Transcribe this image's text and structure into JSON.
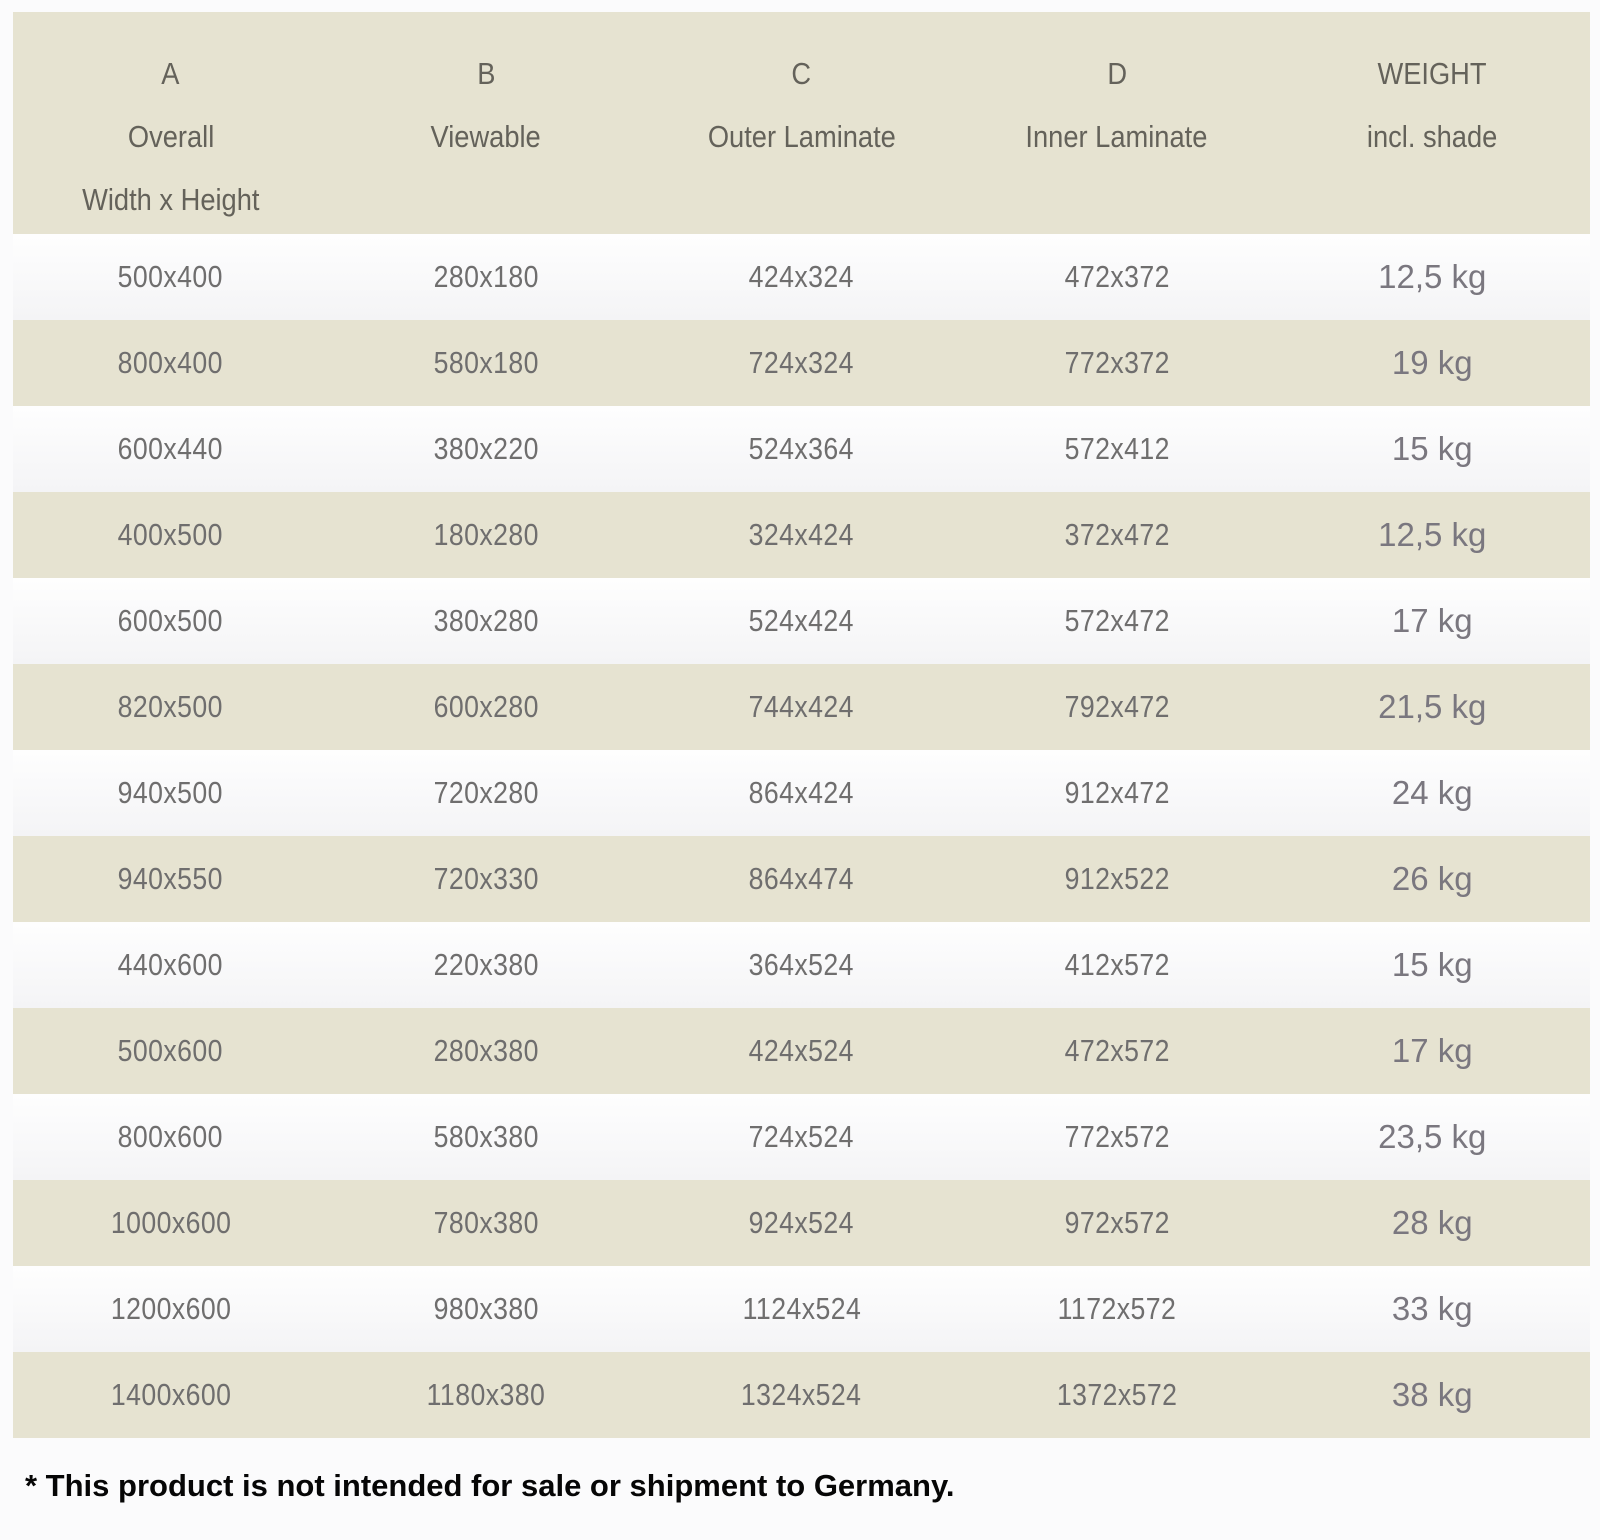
{
  "table": {
    "columns": [
      {
        "letter": "A",
        "name": "Overall",
        "sub": "Width x Height"
      },
      {
        "letter": "B",
        "name": "Viewable",
        "sub": ""
      },
      {
        "letter": "C",
        "name": "Outer Laminate",
        "sub": ""
      },
      {
        "letter": "D",
        "name": "Inner Laminate",
        "sub": ""
      },
      {
        "letter": "WEIGHT",
        "name": "incl. shade",
        "sub": ""
      }
    ],
    "rows": [
      {
        "overall": "500x400",
        "viewable": "280x180",
        "outer": "424x324",
        "inner": "472x372",
        "weight": "12,5 kg"
      },
      {
        "overall": "800x400",
        "viewable": "580x180",
        "outer": "724x324",
        "inner": "772x372",
        "weight": "19 kg"
      },
      {
        "overall": "600x440",
        "viewable": "380x220",
        "outer": "524x364",
        "inner": "572x412",
        "weight": "15 kg"
      },
      {
        "overall": "400x500",
        "viewable": "180x280",
        "outer": "324x424",
        "inner": "372x472",
        "weight": "12,5 kg"
      },
      {
        "overall": "600x500",
        "viewable": "380x280",
        "outer": "524x424",
        "inner": "572x472",
        "weight": "17 kg"
      },
      {
        "overall": "820x500",
        "viewable": "600x280",
        "outer": "744x424",
        "inner": "792x472",
        "weight": "21,5 kg"
      },
      {
        "overall": "940x500",
        "viewable": "720x280",
        "outer": "864x424",
        "inner": "912x472",
        "weight": "24 kg"
      },
      {
        "overall": "940x550",
        "viewable": "720x330",
        "outer": "864x474",
        "inner": "912x522",
        "weight": "26 kg"
      },
      {
        "overall": "440x600",
        "viewable": "220x380",
        "outer": "364x524",
        "inner": "412x572",
        "weight": "15 kg"
      },
      {
        "overall": "500x600",
        "viewable": "280x380",
        "outer": "424x524",
        "inner": "472x572",
        "weight": "17 kg"
      },
      {
        "overall": "800x600",
        "viewable": "580x380",
        "outer": "724x524",
        "inner": "772x572",
        "weight": "23,5 kg"
      },
      {
        "overall": "1000x600",
        "viewable": "780x380",
        "outer": "924x524",
        "inner": "972x572",
        "weight": "28 kg"
      },
      {
        "overall": "1200x600",
        "viewable": "980x380",
        "outer": "1124x524",
        "inner": "1172x572",
        "weight": "33 kg"
      },
      {
        "overall": "1400x600",
        "viewable": "1180x380",
        "outer": "1324x524",
        "inner": "1372x572",
        "weight": "38 kg"
      }
    ]
  },
  "footnote": "* This product is not intended for sale or shipment to Germany.",
  "colors": {
    "header_background": "#e6e3d1",
    "stripe_beige": "#e6e3d1",
    "stripe_white": "#f8f8fa",
    "data_text": "#6f6e6e",
    "weight_text": "#7a777f",
    "header_text": "#64625a",
    "footnote_text": "#060606"
  }
}
